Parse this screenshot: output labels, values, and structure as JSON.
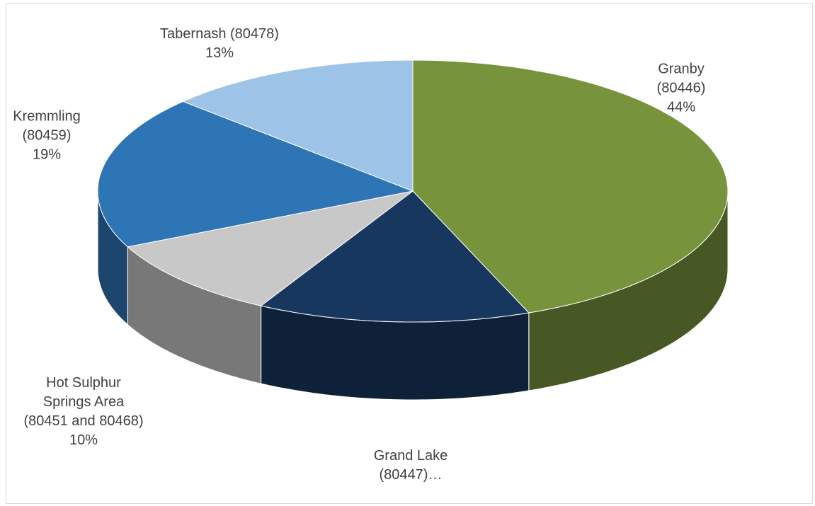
{
  "chart_data": {
    "type": "pie",
    "categories": [
      "Granby\n(80446)",
      "Grand Lake\n(80447)…",
      "Hot Sulphur\nSprings Area\n(80451 and 80468)",
      "Kremmling\n(80459)",
      "Tabernash (80478)"
    ],
    "values": [
      44,
      14,
      10,
      19,
      13
    ],
    "value_labels": [
      "44%",
      null,
      "10%",
      "19%",
      "13%"
    ],
    "colors": [
      "#77933c",
      "#17375e",
      "#c8c8c8",
      "#2e75b6",
      "#9dc3e6"
    ]
  }
}
